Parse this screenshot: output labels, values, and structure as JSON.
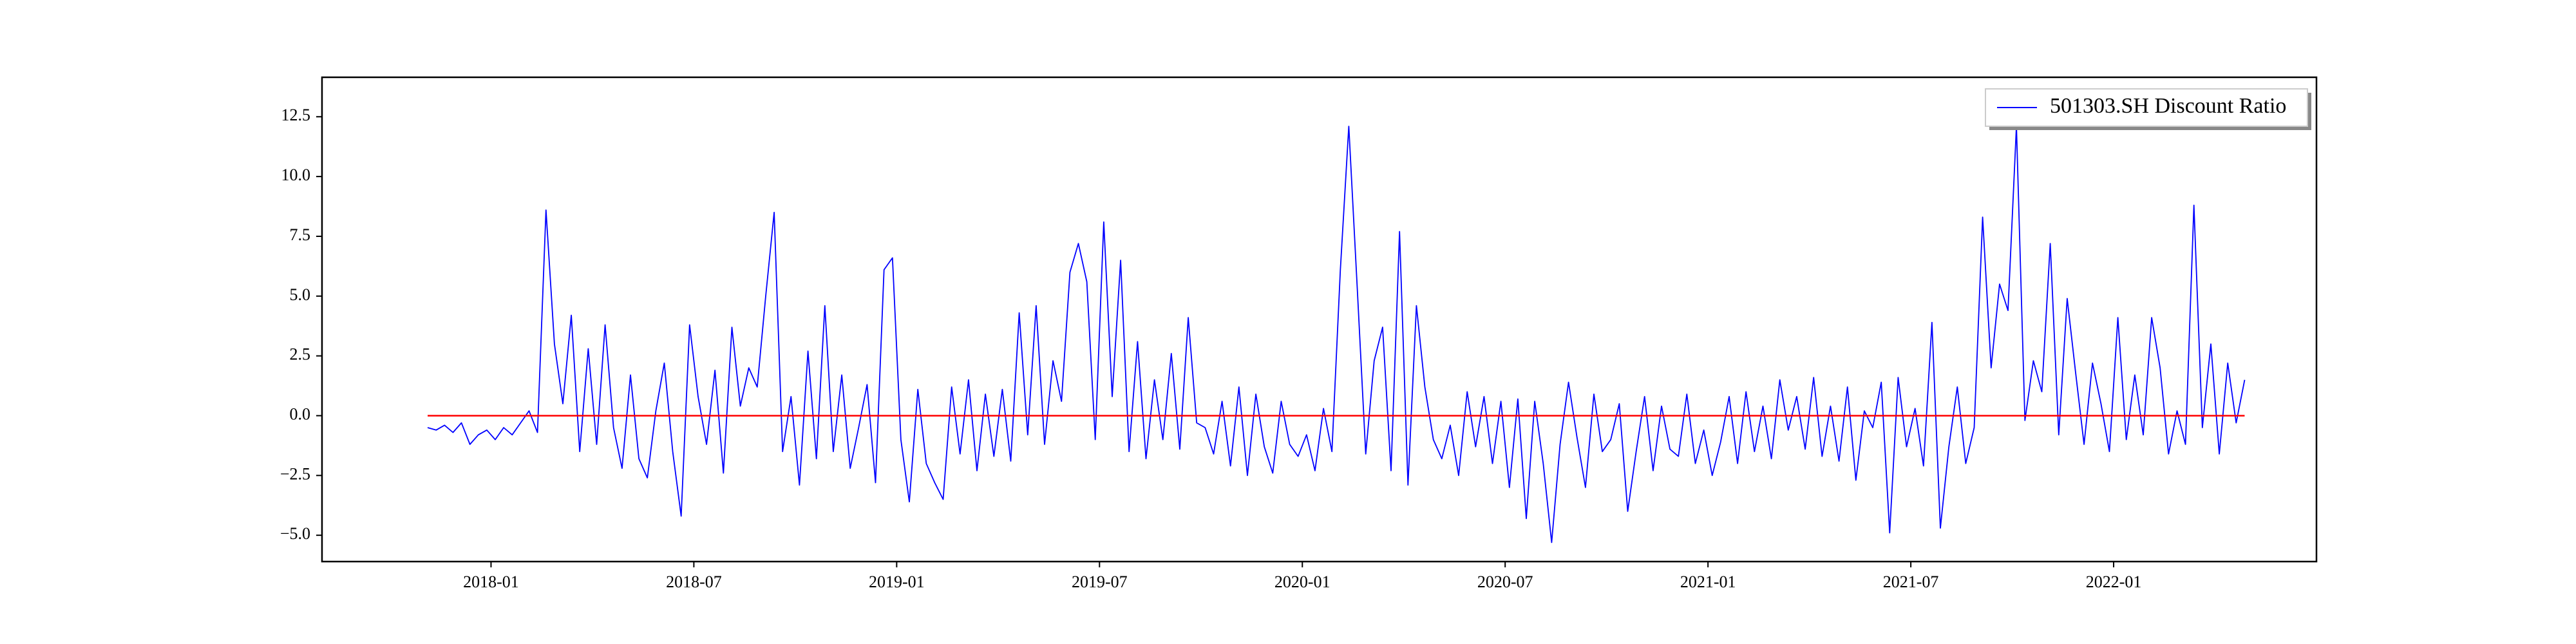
{
  "chart_data": {
    "type": "line",
    "x": [
      "2017-11",
      "2017-11",
      "2017-11",
      "2017-11",
      "2017-12",
      "2017-12",
      "2017-12",
      "2017-12",
      "2018-01",
      "2018-01",
      "2018-01",
      "2018-01",
      "2018-02",
      "2018-02",
      "2018-02",
      "2018-02",
      "2018-03",
      "2018-03",
      "2018-03",
      "2018-03",
      "2018-04",
      "2018-04",
      "2018-04",
      "2018-04",
      "2018-05",
      "2018-05",
      "2018-05",
      "2018-05",
      "2018-06",
      "2018-06",
      "2018-06",
      "2018-06",
      "2018-07",
      "2018-07",
      "2018-07",
      "2018-07",
      "2018-08",
      "2018-08",
      "2018-08",
      "2018-08",
      "2018-09",
      "2018-09",
      "2018-09",
      "2018-09",
      "2018-10",
      "2018-10",
      "2018-10",
      "2018-10",
      "2018-11",
      "2018-11",
      "2018-11",
      "2018-11",
      "2018-12",
      "2018-12",
      "2018-12",
      "2018-12",
      "2019-01",
      "2019-01",
      "2019-01",
      "2019-01",
      "2019-02",
      "2019-02",
      "2019-02",
      "2019-02",
      "2019-03",
      "2019-03",
      "2019-03",
      "2019-03",
      "2019-04",
      "2019-04",
      "2019-04",
      "2019-04",
      "2019-05",
      "2019-05",
      "2019-05",
      "2019-05",
      "2019-06",
      "2019-06",
      "2019-06",
      "2019-06",
      "2019-07",
      "2019-07",
      "2019-07",
      "2019-07",
      "2019-08",
      "2019-08",
      "2019-08",
      "2019-08",
      "2019-09",
      "2019-09",
      "2019-09",
      "2019-09",
      "2019-10",
      "2019-10",
      "2019-10",
      "2019-10",
      "2019-11",
      "2019-11",
      "2019-11",
      "2019-11",
      "2019-12",
      "2019-12",
      "2019-12",
      "2019-12",
      "2020-01",
      "2020-01",
      "2020-01",
      "2020-01",
      "2020-02",
      "2020-02",
      "2020-02",
      "2020-02",
      "2020-03",
      "2020-03",
      "2020-03",
      "2020-03",
      "2020-04",
      "2020-04",
      "2020-04",
      "2020-04",
      "2020-05",
      "2020-05",
      "2020-05",
      "2020-05",
      "2020-06",
      "2020-06",
      "2020-06",
      "2020-06",
      "2020-07",
      "2020-07",
      "2020-07",
      "2020-07",
      "2020-08",
      "2020-08",
      "2020-08",
      "2020-08",
      "2020-09",
      "2020-09",
      "2020-09",
      "2020-09",
      "2020-10",
      "2020-10",
      "2020-10",
      "2020-10",
      "2020-11",
      "2020-11",
      "2020-11",
      "2020-11",
      "2020-12",
      "2020-12",
      "2020-12",
      "2020-12",
      "2021-01",
      "2021-01",
      "2021-01",
      "2021-01",
      "2021-02",
      "2021-02",
      "2021-02",
      "2021-02",
      "2021-03",
      "2021-03",
      "2021-03",
      "2021-03",
      "2021-04",
      "2021-04",
      "2021-04",
      "2021-04",
      "2021-05",
      "2021-05",
      "2021-05",
      "2021-05",
      "2021-06",
      "2021-06",
      "2021-06",
      "2021-06",
      "2021-07",
      "2021-07",
      "2021-07",
      "2021-07",
      "2021-08",
      "2021-08",
      "2021-08",
      "2021-08",
      "2021-09",
      "2021-09",
      "2021-09",
      "2021-09",
      "2021-10",
      "2021-10",
      "2021-10",
      "2021-10",
      "2021-11",
      "2021-11",
      "2021-11",
      "2021-11",
      "2021-12",
      "2021-12",
      "2021-12",
      "2021-12",
      "2022-01",
      "2022-01",
      "2022-01",
      "2022-01",
      "2022-02",
      "2022-02",
      "2022-02",
      "2022-02",
      "2022-03",
      "2022-03",
      "2022-03",
      "2022-03",
      "2022-04",
      "2022-04",
      "2022-04",
      "2022-04"
    ],
    "series": [
      {
        "name": "501303.SH Discount Ratio",
        "color": "#0000ff",
        "values": [
          -0.5,
          -0.6,
          -0.4,
          -0.7,
          -0.3,
          -1.2,
          -0.8,
          -0.6,
          -1.0,
          -0.5,
          -0.8,
          -0.3,
          0.2,
          -0.7,
          8.6,
          3.0,
          0.5,
          4.2,
          -1.5,
          2.8,
          -1.2,
          3.8,
          -0.5,
          -2.2,
          1.7,
          -1.8,
          -2.6,
          0.2,
          2.2,
          -1.5,
          -4.2,
          3.8,
          0.8,
          -1.2,
          1.9,
          -2.4,
          3.7,
          0.4,
          2.0,
          1.2,
          5.0,
          8.5,
          -1.5,
          0.8,
          -2.9,
          2.7,
          -1.8,
          4.6,
          -1.5,
          1.7,
          -2.2,
          -0.5,
          1.3,
          -2.8,
          6.1,
          6.6,
          -1.0,
          -3.6,
          1.1,
          -2.0,
          -2.8,
          -3.5,
          1.2,
          -1.6,
          1.5,
          -2.3,
          0.9,
          -1.7,
          1.1,
          -1.9,
          4.3,
          -0.8,
          4.6,
          -1.2,
          2.3,
          0.6,
          6.0,
          7.2,
          5.6,
          -1.0,
          8.1,
          0.8,
          6.5,
          -1.5,
          3.1,
          -1.8,
          1.5,
          -1.0,
          2.6,
          -1.4,
          4.1,
          -0.3,
          -0.5,
          -1.6,
          0.6,
          -2.1,
          1.2,
          -2.5,
          0.9,
          -1.3,
          -2.4,
          0.6,
          -1.2,
          -1.7,
          -0.8,
          -2.3,
          0.3,
          -1.5,
          6.1,
          12.1,
          5.3,
          -1.6,
          2.3,
          3.7,
          -2.3,
          7.7,
          -2.9,
          4.6,
          1.2,
          -1.0,
          -1.8,
          -0.4,
          -2.5,
          1.0,
          -1.3,
          0.8,
          -2.0,
          0.6,
          -3.0,
          0.7,
          -4.3,
          0.6,
          -2.0,
          -5.3,
          -1.2,
          1.4,
          -0.9,
          -3.0,
          0.9,
          -1.5,
          -1.0,
          0.5,
          -4.0,
          -1.5,
          0.8,
          -2.3,
          0.4,
          -1.4,
          -1.7,
          0.9,
          -2.0,
          -0.6,
          -2.5,
          -1.1,
          0.8,
          -2.0,
          1.0,
          -1.5,
          0.4,
          -1.8,
          1.5,
          -0.6,
          0.8,
          -1.4,
          1.6,
          -1.7,
          0.4,
          -1.9,
          1.2,
          -2.7,
          0.2,
          -0.5,
          1.4,
          -4.9,
          1.6,
          -1.3,
          0.3,
          -2.1,
          3.9,
          -4.7,
          -1.3,
          1.2,
          -2.0,
          -0.5,
          8.3,
          2.0,
          5.5,
          4.4,
          12.1,
          -0.2,
          2.3,
          1.0,
          7.2,
          -0.8,
          4.9,
          1.8,
          -1.2,
          2.2,
          0.5,
          -1.5,
          4.1,
          -1.0,
          1.7,
          -0.8,
          4.1,
          2.0,
          -1.6,
          0.2,
          -1.2,
          8.8,
          -0.5,
          3.0,
          -1.6,
          2.2,
          -0.3,
          1.5
        ]
      }
    ],
    "hline": {
      "value": 0,
      "color": "#ff0000"
    },
    "xlim": [
      "2017-08",
      "2022-07"
    ],
    "xticks": [
      "2018-01",
      "2018-07",
      "2019-01",
      "2019-07",
      "2020-01",
      "2020-07",
      "2021-01",
      "2021-07",
      "2022-01"
    ],
    "ylim": [
      -6.1,
      14.15
    ],
    "yticks": [
      {
        "value": -5,
        "label": "−5.0"
      },
      {
        "value": -2.5,
        "label": "−2.5"
      },
      {
        "value": 0,
        "label": "0.0"
      },
      2.5,
      {
        "value": 5,
        "label": "5.0"
      },
      7.5,
      {
        "value": 10,
        "label": "10.0"
      },
      12.5
    ],
    "legend": "upper right"
  }
}
